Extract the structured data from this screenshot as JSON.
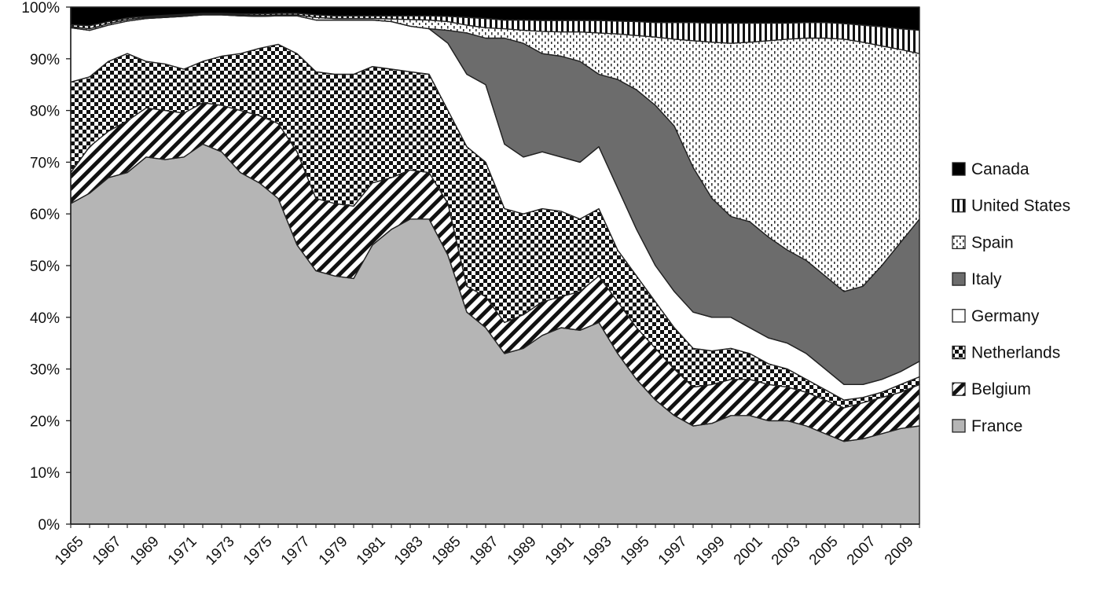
{
  "chart_data": {
    "type": "area",
    "stacked": true,
    "percent": true,
    "title": "",
    "xlabel": "",
    "ylabel": "",
    "ylim": [
      0,
      100
    ],
    "y_ticks": [
      "0%",
      "10%",
      "20%",
      "30%",
      "40%",
      "50%",
      "60%",
      "70%",
      "80%",
      "90%",
      "100%"
    ],
    "x_tick_labels": [
      "1965",
      "1967",
      "1969",
      "1971",
      "1973",
      "1975",
      "1977",
      "1979",
      "1981",
      "1983",
      "1985",
      "1987",
      "1989",
      "1991",
      "1993",
      "1995",
      "1997",
      "1999",
      "2001",
      "2003",
      "2005",
      "2007",
      "2009"
    ],
    "legend_position": "right",
    "grid": false,
    "x": [
      1965,
      1966,
      1967,
      1968,
      1969,
      1970,
      1971,
      1972,
      1973,
      1974,
      1975,
      1976,
      1977,
      1978,
      1979,
      1980,
      1981,
      1982,
      1983,
      1984,
      1985,
      1986,
      1987,
      1988,
      1989,
      1990,
      1991,
      1992,
      1993,
      1994,
      1995,
      1996,
      1997,
      1998,
      1999,
      2000,
      2001,
      2002,
      2003,
      2004,
      2005,
      2006,
      2007,
      2008,
      2009,
      2010
    ],
    "cumulative_top_note": "values below are cumulative upper boundaries (%) of each stacked band, bottom to top",
    "series": [
      {
        "name": "France",
        "fill": "#b5b5b5",
        "pattern": "solid",
        "top": [
          62,
          64,
          67,
          68,
          71,
          70.5,
          71,
          73.5,
          72,
          68,
          66,
          63,
          54,
          49,
          48,
          47.5,
          54,
          57,
          59,
          59,
          52,
          41,
          38,
          33,
          34,
          36.5,
          38,
          37.5,
          39,
          33,
          28,
          24,
          21,
          19,
          19.5,
          21,
          21,
          20,
          20,
          19,
          17.5,
          16,
          16.5,
          17.5,
          18.5,
          19
        ]
      },
      {
        "name": "Belgium",
        "fill": "#ffffff",
        "pattern": "diagonal",
        "top": [
          68,
          73,
          76,
          78,
          80.5,
          80,
          79.5,
          81.5,
          81,
          80,
          79,
          77.5,
          72,
          63,
          62,
          61.5,
          66,
          67,
          68.5,
          68,
          62,
          46,
          44,
          39,
          40.5,
          43,
          44,
          45,
          48,
          43,
          38,
          34,
          30,
          26.5,
          27,
          28,
          28,
          27,
          26.5,
          25.5,
          24,
          22.5,
          23.5,
          24.5,
          25.5,
          27
        ]
      },
      {
        "name": "Netherlands",
        "fill": "#ffffff",
        "pattern": "checker",
        "top": [
          85.5,
          86.5,
          89.5,
          91,
          89.5,
          89,
          88,
          89.5,
          90.5,
          91,
          92,
          92.8,
          91,
          87.5,
          87,
          87,
          88.5,
          88,
          87.5,
          87,
          80,
          73,
          70,
          61,
          60,
          61,
          60.5,
          59,
          61,
          53,
          48,
          43,
          38,
          34,
          33.5,
          34,
          33,
          31,
          30,
          28,
          26,
          24,
          24.5,
          25.5,
          27,
          28.5
        ]
      },
      {
        "name": "Germany",
        "fill": "#ffffff",
        "pattern": "solid",
        "top": [
          96,
          95.5,
          96.5,
          97.3,
          97.8,
          98,
          98.2,
          98.5,
          98.5,
          98.3,
          98.2,
          98.3,
          98.3,
          97.5,
          97.5,
          97.5,
          97.5,
          97.2,
          96.3,
          95.8,
          93,
          87,
          85,
          73.5,
          71,
          72,
          71,
          70,
          73,
          65,
          57,
          50,
          45,
          41,
          40,
          40,
          38,
          36,
          35,
          33,
          30,
          27,
          27,
          28,
          29.5,
          31.5
        ]
      },
      {
        "name": "Italy",
        "fill": "#6c6c6c",
        "pattern": "solid",
        "top": [
          96,
          95.5,
          96.5,
          97.3,
          97.8,
          98,
          98.2,
          98.5,
          98.5,
          98.3,
          98.2,
          98.3,
          98.3,
          97.5,
          97.5,
          97.5,
          97.5,
          97.2,
          96.3,
          95.8,
          95.5,
          95,
          94,
          94,
          93,
          91,
          90.5,
          89.5,
          87,
          86,
          84,
          81,
          77,
          69,
          63,
          59.5,
          58.5,
          55.5,
          53,
          51,
          48,
          45,
          46,
          50,
          54.5,
          59
        ]
      },
      {
        "name": "Spain",
        "fill": "#ffffff",
        "pattern": "dots",
        "top": [
          96.2,
          95.8,
          96.8,
          97.6,
          98,
          98.2,
          98.4,
          98.6,
          98.6,
          98.5,
          98.4,
          98.5,
          98.5,
          98,
          97.8,
          97.8,
          97.8,
          97.7,
          97.6,
          97.5,
          97.2,
          96.5,
          96,
          95.8,
          95.5,
          95.3,
          95.2,
          95.2,
          95,
          94.8,
          94.5,
          94.2,
          93.8,
          93.5,
          93.2,
          93,
          93.2,
          93.5,
          93.8,
          94,
          94,
          93.8,
          93.2,
          92.5,
          91.8,
          91
        ]
      },
      {
        "name": "United States",
        "fill": "#ffffff",
        "pattern": "vertical",
        "top": [
          96.6,
          96.4,
          97.2,
          97.9,
          98.2,
          98.4,
          98.6,
          98.8,
          98.8,
          98.7,
          98.7,
          98.8,
          98.8,
          98.5,
          98.3,
          98.3,
          98.3,
          98.3,
          98.3,
          98.3,
          98.2,
          98,
          97.8,
          97.5,
          97.5,
          97.4,
          97.4,
          97.4,
          97.4,
          97.3,
          97.2,
          97,
          97,
          97,
          96.9,
          96.9,
          96.9,
          96.9,
          96.9,
          97,
          97,
          96.8,
          96.5,
          96.2,
          95.8,
          95.5
        ]
      },
      {
        "name": "Canada",
        "fill": "#000000",
        "pattern": "solid",
        "top": [
          100,
          100,
          100,
          100,
          100,
          100,
          100,
          100,
          100,
          100,
          100,
          100,
          100,
          100,
          100,
          100,
          100,
          100,
          100,
          100,
          100,
          100,
          100,
          100,
          100,
          100,
          100,
          100,
          100,
          100,
          100,
          100,
          100,
          100,
          100,
          100,
          100,
          100,
          100,
          100,
          100,
          100,
          100,
          100,
          100,
          100
        ]
      }
    ],
    "legend_order": [
      "Canada",
      "United States",
      "Spain",
      "Italy",
      "Germany",
      "Netherlands",
      "Belgium",
      "France"
    ]
  }
}
